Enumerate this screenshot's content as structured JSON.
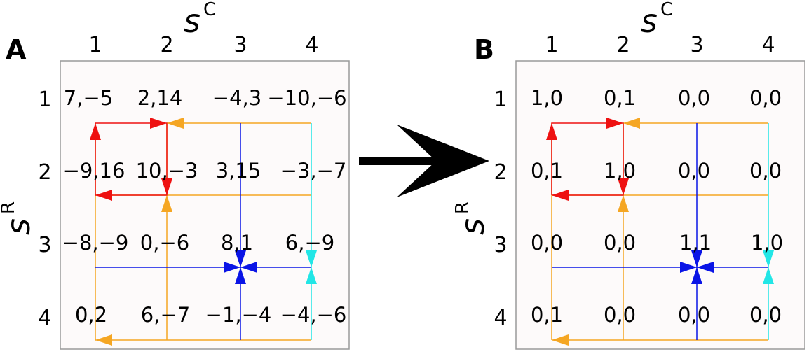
{
  "colors": {
    "red": "#ee1111",
    "orange": "#f5a623",
    "blue": "#0a14e6",
    "cyan": "#22e6e6",
    "panel_bg": "#fdfafa",
    "panel_border": "#9a9a9a",
    "arrow": "#000000"
  },
  "axes": {
    "col_symbol": "s",
    "col_super": "C",
    "row_symbol": "s",
    "row_super": "R",
    "col_labels": [
      "1",
      "2",
      "3",
      "4"
    ],
    "row_labels": [
      "1",
      "2",
      "3",
      "4"
    ]
  },
  "panels": [
    {
      "letter": "A",
      "payoffs": [
        [
          "7,−5",
          "2,14",
          "−4,3",
          "−10,−6"
        ],
        [
          "−9,16",
          "10,−3",
          "3,15",
          "−3,−7"
        ],
        [
          "−8,−9",
          "0,−6",
          "8,1",
          "6,−9"
        ],
        [
          "0,2",
          "6,−7",
          "−1,−4",
          "−4,−6"
        ]
      ]
    },
    {
      "letter": "B",
      "payoffs": [
        [
          "1,0",
          "0,1",
          "0,0",
          "0,0"
        ],
        [
          "0,1",
          "1,0",
          "0,0",
          "0,0"
        ],
        [
          "0,0",
          "0,0",
          "1,1",
          "1,0"
        ],
        [
          "0,1",
          "0,0",
          "0,0",
          "0,0"
        ]
      ]
    }
  ]
}
